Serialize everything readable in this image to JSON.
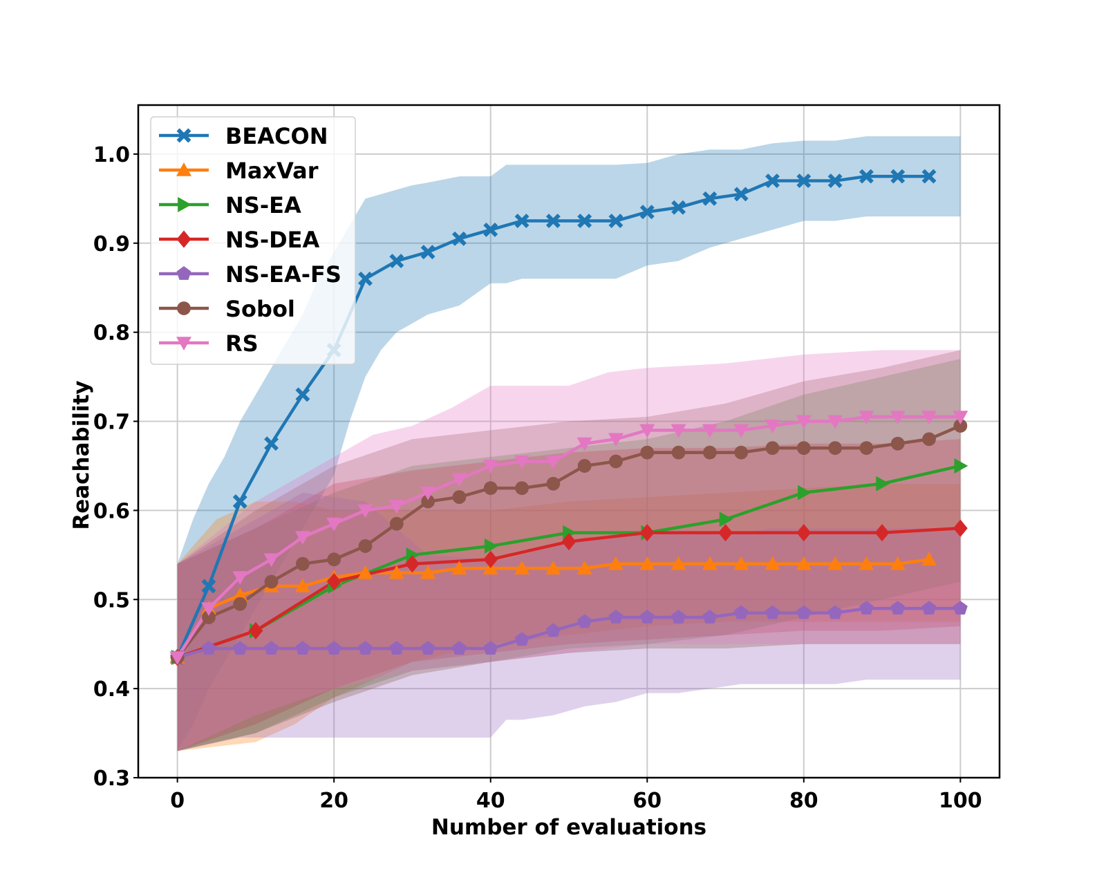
{
  "chart_data": {
    "type": "line",
    "title": "",
    "xlabel": "Number of evaluations",
    "ylabel": "Reachability",
    "xlim": [
      -5,
      105
    ],
    "ylim": [
      0.3,
      1.055
    ],
    "xticks": [
      0,
      20,
      40,
      60,
      80,
      100
    ],
    "xtick_labels": [
      "0",
      "20",
      "40",
      "60",
      "80",
      "100"
    ],
    "yticks": [
      0.3,
      0.4,
      0.5,
      0.6,
      0.7,
      0.8,
      0.9,
      1.0
    ],
    "ytick_labels": [
      "0.3",
      "0.4",
      "0.5",
      "0.6",
      "0.7",
      "0.8",
      "0.9",
      "1.0"
    ],
    "grid": true,
    "legend_position": "upper-left",
    "series": [
      {
        "name": "BEACON",
        "color": "#1f77b4",
        "marker": "x-filled",
        "x": [
          0,
          4,
          8,
          12,
          16,
          20,
          24,
          28,
          32,
          36,
          40,
          44,
          48,
          52,
          56,
          60,
          64,
          68,
          72,
          76,
          80,
          84,
          88,
          92,
          96
        ],
        "y": [
          0.435,
          0.515,
          0.61,
          0.675,
          0.73,
          0.78,
          0.86,
          0.88,
          0.89,
          0.905,
          0.915,
          0.925,
          0.925,
          0.925,
          0.925,
          0.935,
          0.94,
          0.95,
          0.955,
          0.97,
          0.97,
          0.97,
          0.975,
          0.975,
          0.975
        ],
        "band_x": [
          0,
          2,
          4,
          6,
          8,
          10,
          12,
          14,
          16,
          18,
          20,
          22,
          24,
          26,
          28,
          30,
          32,
          36,
          40,
          42,
          44,
          48,
          52,
          56,
          60,
          64,
          68,
          72,
          76,
          80,
          84,
          88,
          92,
          96,
          100
        ],
        "band_upper": [
          0.54,
          0.59,
          0.63,
          0.66,
          0.7,
          0.73,
          0.76,
          0.79,
          0.82,
          0.86,
          0.89,
          0.92,
          0.95,
          0.955,
          0.96,
          0.965,
          0.968,
          0.975,
          0.975,
          0.988,
          0.988,
          0.988,
          0.988,
          0.988,
          0.99,
          1.0,
          1.005,
          1.005,
          1.012,
          1.015,
          1.015,
          1.02,
          1.02,
          1.02,
          1.02
        ],
        "band_lower": [
          0.33,
          0.36,
          0.4,
          0.43,
          0.46,
          0.49,
          0.52,
          0.55,
          0.58,
          0.61,
          0.64,
          0.7,
          0.75,
          0.78,
          0.8,
          0.81,
          0.82,
          0.83,
          0.855,
          0.855,
          0.86,
          0.86,
          0.86,
          0.86,
          0.875,
          0.88,
          0.895,
          0.905,
          0.915,
          0.925,
          0.925,
          0.93,
          0.93,
          0.93,
          0.93
        ]
      },
      {
        "name": "MaxVar",
        "color": "#ff7f0e",
        "marker": "triangle-up",
        "x": [
          0,
          4,
          8,
          12,
          16,
          20,
          24,
          28,
          32,
          36,
          40,
          44,
          48,
          52,
          56,
          60,
          64,
          68,
          72,
          76,
          80,
          84,
          88,
          92,
          96
        ],
        "y": [
          0.435,
          0.49,
          0.505,
          0.515,
          0.515,
          0.525,
          0.53,
          0.53,
          0.53,
          0.535,
          0.535,
          0.535,
          0.535,
          0.535,
          0.54,
          0.54,
          0.54,
          0.54,
          0.54,
          0.54,
          0.54,
          0.54,
          0.54,
          0.54,
          0.545
        ],
        "band_x": [
          0,
          5,
          10,
          15,
          20,
          30,
          40,
          50,
          60,
          70,
          80,
          90,
          100
        ],
        "band_upper": [
          0.54,
          0.59,
          0.61,
          0.61,
          0.6,
          0.6,
          0.6,
          0.61,
          0.615,
          0.62,
          0.625,
          0.63,
          0.63
        ],
        "band_lower": [
          0.33,
          0.335,
          0.34,
          0.36,
          0.39,
          0.43,
          0.45,
          0.46,
          0.47,
          0.475,
          0.475,
          0.475,
          0.475
        ]
      },
      {
        "name": "NS-EA",
        "color": "#2ca02c",
        "marker": "triangle-right",
        "x": [
          0,
          10,
          20,
          30,
          40,
          50,
          60,
          70,
          80,
          90,
          100
        ],
        "y": [
          0.435,
          0.465,
          0.515,
          0.55,
          0.56,
          0.575,
          0.575,
          0.59,
          0.62,
          0.63,
          0.65
        ],
        "band_x": [
          0,
          10,
          20,
          30,
          40,
          50,
          60,
          70,
          80,
          90,
          100
        ],
        "band_upper": [
          0.54,
          0.58,
          0.62,
          0.65,
          0.66,
          0.67,
          0.68,
          0.7,
          0.73,
          0.75,
          0.77
        ],
        "band_lower": [
          0.33,
          0.35,
          0.39,
          0.42,
          0.43,
          0.445,
          0.45,
          0.46,
          0.48,
          0.5,
          0.52
        ]
      },
      {
        "name": "NS-DEA",
        "color": "#d62728",
        "marker": "diamond",
        "x": [
          0,
          10,
          20,
          30,
          40,
          50,
          60,
          70,
          80,
          90,
          100
        ],
        "y": [
          0.435,
          0.465,
          0.52,
          0.54,
          0.545,
          0.565,
          0.575,
          0.575,
          0.575,
          0.575,
          0.58
        ],
        "band_x": [
          0,
          10,
          20,
          30,
          40,
          50,
          60,
          70,
          80,
          90,
          100
        ],
        "band_upper": [
          0.54,
          0.58,
          0.63,
          0.645,
          0.655,
          0.665,
          0.67,
          0.67,
          0.675,
          0.675,
          0.68
        ],
        "band_lower": [
          0.33,
          0.36,
          0.4,
          0.43,
          0.44,
          0.45,
          0.455,
          0.46,
          0.465,
          0.465,
          0.47
        ]
      },
      {
        "name": "NS-EA-FS",
        "color": "#9467bd",
        "marker": "pentagon",
        "x": [
          0,
          4,
          8,
          12,
          16,
          20,
          24,
          28,
          32,
          36,
          40,
          44,
          48,
          52,
          56,
          60,
          64,
          68,
          72,
          76,
          80,
          84,
          88,
          92,
          96,
          100
        ],
        "y": [
          0.435,
          0.445,
          0.445,
          0.445,
          0.445,
          0.445,
          0.445,
          0.445,
          0.445,
          0.445,
          0.445,
          0.455,
          0.465,
          0.475,
          0.48,
          0.48,
          0.48,
          0.48,
          0.485,
          0.485,
          0.485,
          0.485,
          0.49,
          0.49,
          0.49,
          0.49
        ],
        "band_x": [
          0,
          8,
          16,
          24,
          32,
          40,
          42,
          44,
          48,
          52,
          56,
          60,
          64,
          68,
          72,
          76,
          80,
          84,
          88,
          92,
          96,
          100
        ],
        "band_upper": [
          0.54,
          0.58,
          0.62,
          0.61,
          0.55,
          0.545,
          0.545,
          0.55,
          0.56,
          0.57,
          0.57,
          0.575,
          0.575,
          0.575,
          0.575,
          0.58,
          0.58,
          0.58,
          0.58,
          0.58,
          0.58,
          0.58
        ],
        "band_lower": [
          0.33,
          0.345,
          0.345,
          0.345,
          0.345,
          0.345,
          0.365,
          0.365,
          0.37,
          0.38,
          0.385,
          0.395,
          0.395,
          0.4,
          0.405,
          0.405,
          0.405,
          0.405,
          0.41,
          0.41,
          0.41,
          0.41
        ]
      },
      {
        "name": "Sobol",
        "color": "#8c564b",
        "marker": "circle",
        "x": [
          0,
          4,
          8,
          12,
          16,
          20,
          24,
          28,
          32,
          36,
          40,
          44,
          48,
          52,
          56,
          60,
          64,
          68,
          72,
          76,
          80,
          84,
          88,
          92,
          96,
          100
        ],
        "y": [
          0.435,
          0.48,
          0.495,
          0.52,
          0.54,
          0.545,
          0.56,
          0.585,
          0.61,
          0.615,
          0.625,
          0.625,
          0.63,
          0.65,
          0.655,
          0.665,
          0.665,
          0.665,
          0.665,
          0.67,
          0.67,
          0.67,
          0.67,
          0.675,
          0.68,
          0.695
        ],
        "band_x": [
          0,
          10,
          20,
          30,
          40,
          50,
          60,
          70,
          80,
          90,
          100
        ],
        "band_upper": [
          0.54,
          0.6,
          0.65,
          0.68,
          0.69,
          0.7,
          0.705,
          0.72,
          0.745,
          0.76,
          0.78
        ],
        "band_lower": [
          0.33,
          0.35,
          0.385,
          0.415,
          0.43,
          0.44,
          0.445,
          0.445,
          0.45,
          0.45,
          0.45
        ]
      },
      {
        "name": "RS",
        "color": "#e377c2",
        "marker": "triangle-down",
        "x": [
          0,
          4,
          8,
          12,
          16,
          20,
          24,
          28,
          32,
          36,
          40,
          44,
          48,
          52,
          56,
          60,
          64,
          68,
          72,
          76,
          80,
          84,
          88,
          92,
          96,
          100
        ],
        "y": [
          0.435,
          0.49,
          0.525,
          0.545,
          0.57,
          0.585,
          0.6,
          0.605,
          0.62,
          0.635,
          0.65,
          0.655,
          0.655,
          0.675,
          0.68,
          0.69,
          0.69,
          0.69,
          0.69,
          0.695,
          0.7,
          0.7,
          0.705,
          0.705,
          0.705,
          0.705
        ],
        "band_x": [
          0,
          10,
          20,
          25,
          30,
          35,
          40,
          50,
          55,
          60,
          70,
          80,
          90,
          100
        ],
        "band_upper": [
          0.54,
          0.61,
          0.66,
          0.685,
          0.695,
          0.715,
          0.74,
          0.74,
          0.755,
          0.76,
          0.765,
          0.775,
          0.78,
          0.78
        ],
        "band_lower": [
          0.33,
          0.37,
          0.4,
          0.41,
          0.42,
          0.425,
          0.43,
          0.44,
          0.445,
          0.45,
          0.45,
          0.45,
          0.45,
          0.45
        ]
      }
    ]
  }
}
